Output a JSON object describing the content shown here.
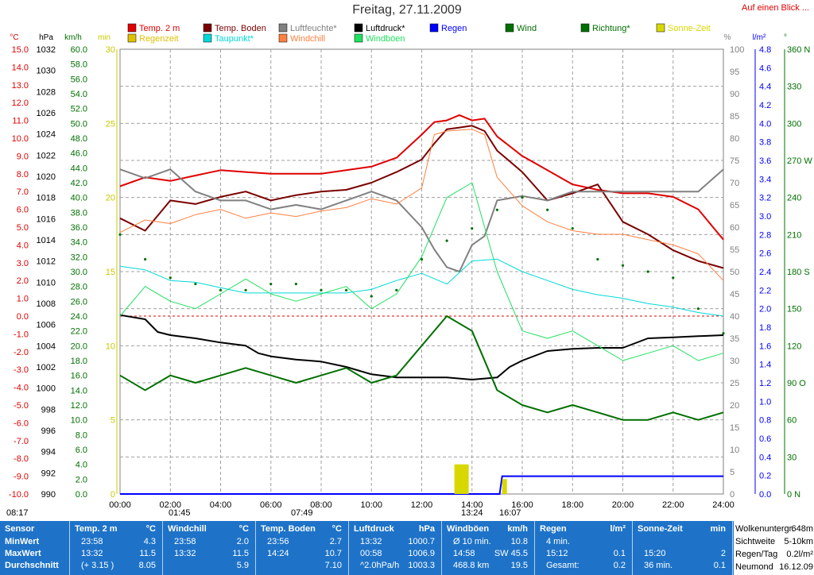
{
  "header": {
    "title": "Freitag, 27.11.2009",
    "link_label": "Auf einen Blick ..."
  },
  "legend": [
    {
      "label": "Temp. 2 m",
      "color": "#e00000"
    },
    {
      "label": "Temp. Boden",
      "color": "#7b0000"
    },
    {
      "label": "Luftfeuchte*",
      "color": "#808080"
    },
    {
      "label": "Luftdruck*",
      "color": "#000000"
    },
    {
      "label": "Regen",
      "color": "#0000ff"
    },
    {
      "label": "Wind",
      "color": "#007000"
    },
    {
      "label": "Richtung*",
      "color": "#007000"
    },
    {
      "label": "Sonne-Zeit",
      "color": "#d8d800"
    },
    {
      "label": "Regenzeit",
      "color": "#e0c000"
    },
    {
      "label": "Taupunkt*",
      "color": "#00d8d8"
    },
    {
      "label": "Windchill",
      "color": "#ff8040"
    },
    {
      "label": "Windböen",
      "color": "#20e060"
    }
  ],
  "axis_units": [
    "°C",
    "hPa",
    "km/h",
    "min",
    "%",
    "l/m²",
    "°"
  ],
  "markers": {
    "sunrise": "08:17",
    "moon1": "01:45",
    "moon2": "07:49",
    "sun_max": "13:24",
    "sunset": "16:07"
  },
  "stats": {
    "sensor_header": "Sensor",
    "row_labels": [
      "MinWert",
      "MaxWert",
      "Durchschnitt"
    ],
    "columns": [
      {
        "title": "Temp. 2 m",
        "unit": "°C",
        "rows": [
          [
            "23:58",
            "4.3"
          ],
          [
            "13:32",
            "11.5"
          ],
          [
            "(+ 3.15 )",
            "8.05"
          ]
        ]
      },
      {
        "title": "Windchill",
        "unit": "°C",
        "rows": [
          [
            "23:58",
            "2.0"
          ],
          [
            "13:32",
            "11.5"
          ],
          [
            "",
            "5.9"
          ]
        ]
      },
      {
        "title": "Temp. Boden",
        "unit": "°C",
        "rows": [
          [
            "23:56",
            "2.7"
          ],
          [
            "14:24",
            "10.7"
          ],
          [
            "",
            "7.10"
          ]
        ]
      },
      {
        "title": "Luftdruck",
        "unit": "hPa",
        "rows": [
          [
            "13:32",
            "1000.7"
          ],
          [
            "00:58",
            "1006.9"
          ],
          [
            "^2.0hPa/h",
            "1003.3"
          ]
        ]
      },
      {
        "title": "Windböen",
        "unit": "km/h",
        "rows": [
          [
            "Ø 10 min.",
            "10.8"
          ],
          [
            "14:58",
            "SW 45.5"
          ],
          [
            "468.8 km",
            "19.5"
          ]
        ]
      },
      {
        "title": "Regen",
        "unit": "l/m²",
        "rows": [
          [
            "4 min.",
            ""
          ],
          [
            "15:12",
            "0.1"
          ],
          [
            "Gesamt:",
            "0.2"
          ]
        ]
      },
      {
        "title": "Sonne-Zeit",
        "unit": "min",
        "rows": [
          [
            "",
            ""
          ],
          [
            "15:20",
            "2"
          ],
          [
            "36 min.",
            "0.1"
          ]
        ]
      }
    ],
    "side": [
      {
        "label": "Wolkenuntergr.",
        "value": "648m"
      },
      {
        "label": "Sichtweite",
        "value": "5-10km"
      },
      {
        "label": "Regen/Tag",
        "value": "0.2l/m²"
      },
      {
        "label": "Neumond",
        "value": "16.12.09"
      }
    ]
  },
  "chart_data": {
    "type": "line",
    "title": "Freitag, 27.11.2009",
    "x_ticks": [
      "00:00",
      "02:00",
      "04:00",
      "06:00",
      "08:00",
      "10:00",
      "12:00",
      "14:00",
      "16:00",
      "18:00",
      "20:00",
      "22:00",
      "24:00"
    ],
    "x_range_hours": [
      0,
      24
    ],
    "grid": true,
    "axes": {
      "temp_c": {
        "ticks": [
          "15.0",
          "14.0",
          "13.0",
          "12.0",
          "11.0",
          "10.0",
          "9.0",
          "8.0",
          "7.0",
          "6.0",
          "5.0",
          "4.0",
          "3.0",
          "2.0",
          "1.0",
          "0.0",
          "-1.0",
          "-2.0",
          "-3.0",
          "-4.0",
          "-5.0",
          "-6.0",
          "-7.0",
          "-8.0",
          "-9.0",
          "-10.0"
        ],
        "range": [
          -10,
          15
        ]
      },
      "pressure_hpa": {
        "ticks": [
          "1032",
          "1030",
          "1028",
          "1026",
          "1024",
          "1022",
          "1020",
          "1018",
          "1016",
          "1014",
          "1012",
          "1010",
          "1008",
          "1006",
          "1004",
          "1002",
          "1000",
          "998",
          "996",
          "994",
          "992",
          "990"
        ],
        "range": [
          990,
          1032
        ]
      },
      "wind_kmh": {
        "ticks": [
          "60.0",
          "58.0",
          "56.0",
          "54.0",
          "52.0",
          "50.0",
          "48.0",
          "46.0",
          "44.0",
          "42.0",
          "40.0",
          "38.0",
          "36.0",
          "34.0",
          "32.0",
          "30.0",
          "28.0",
          "26.0",
          "24.0",
          "22.0",
          "20.0",
          "18.0",
          "16.0",
          "14.0",
          "12.0",
          "10.0",
          "8.0",
          "6.0",
          "4.0",
          "2.0",
          "0.0"
        ],
        "range": [
          0,
          60
        ]
      },
      "min": {
        "ticks": [
          "30",
          "25",
          "20",
          "15",
          "10",
          "5",
          "0"
        ],
        "range": [
          0,
          30
        ]
      },
      "humidity_pct": {
        "ticks": [
          "100",
          "95",
          "90",
          "85",
          "80",
          "75",
          "70",
          "65",
          "60",
          "55",
          "50",
          "45",
          "40",
          "35",
          "30",
          "25",
          "20",
          "15",
          "10",
          "5",
          "0"
        ],
        "range": [
          0,
          100
        ]
      },
      "rain_lm2": {
        "ticks": [
          "4.8",
          "4.6",
          "4.4",
          "4.2",
          "4.0",
          "3.8",
          "3.6",
          "3.4",
          "3.2",
          "3.0",
          "2.8",
          "2.6",
          "2.4",
          "2.2",
          "2.0",
          "1.8",
          "1.6",
          "1.4",
          "1.2",
          "1.0",
          "0.8",
          "0.6",
          "0.4",
          "0.2",
          "0.0"
        ],
        "range": [
          0,
          5
        ]
      },
      "direction_deg": {
        "ticks": [
          "360 N",
          "330",
          "300",
          "270 W",
          "240",
          "210",
          "180 S",
          "150",
          "120",
          "90 O",
          "60",
          "30",
          "0 N"
        ],
        "range": [
          0,
          360
        ]
      }
    },
    "series": [
      {
        "name": "Temp. 2 m",
        "axis": "temp_c",
        "color": "#e00000",
        "x": [
          0,
          1,
          2,
          3,
          4,
          5,
          6,
          7,
          8,
          9,
          10,
          11,
          12,
          12.5,
          13,
          13.5,
          14,
          14.5,
          15,
          16,
          17,
          18,
          19,
          20,
          21,
          22,
          23,
          24
        ],
        "y": [
          7.3,
          7.8,
          7.6,
          7.9,
          8.2,
          8.1,
          8.0,
          8.0,
          8.0,
          8.2,
          8.4,
          8.9,
          10.2,
          10.9,
          11.0,
          11.3,
          11.0,
          11.1,
          10.1,
          9.0,
          8.2,
          7.4,
          7.1,
          6.9,
          6.9,
          6.7,
          6.0,
          4.3
        ]
      },
      {
        "name": "Temp. Boden",
        "axis": "temp_c",
        "color": "#7b0000",
        "x": [
          0,
          1,
          2,
          3,
          4,
          5,
          6,
          7,
          8,
          9,
          10,
          11,
          12,
          12.5,
          13,
          13.5,
          14,
          14.5,
          15,
          16,
          17,
          18,
          19,
          20,
          21,
          22,
          23,
          24
        ],
        "y": [
          5.5,
          4.8,
          6.5,
          6.3,
          6.7,
          7.0,
          6.5,
          6.8,
          7.0,
          7.1,
          7.5,
          8.1,
          8.8,
          9.7,
          10.5,
          10.6,
          10.7,
          10.4,
          9.3,
          8.1,
          6.5,
          6.9,
          7.4,
          5.3,
          4.6,
          3.7,
          3.1,
          2.7
        ]
      },
      {
        "name": "Luftfeuchte*",
        "axis": "humidity_pct",
        "color": "#808080",
        "x": [
          0,
          1,
          2,
          3,
          4,
          5,
          6,
          7,
          8,
          9,
          10,
          11,
          12,
          12.5,
          13,
          13.5,
          14,
          14.5,
          15,
          16,
          17,
          18,
          19,
          20,
          21,
          22,
          23,
          24
        ],
        "y": [
          73,
          71,
          73,
          68,
          66,
          66,
          64,
          65,
          64,
          66,
          68,
          66,
          60,
          55,
          51,
          50,
          56,
          58,
          66,
          67,
          66,
          68,
          68,
          68,
          68,
          68,
          68,
          73
        ]
      },
      {
        "name": "Luftdruck*",
        "axis": "pressure_hpa",
        "color": "#000000",
        "x": [
          0,
          1,
          1.5,
          2,
          3,
          4,
          5,
          5.5,
          6,
          7,
          8,
          9,
          10,
          11,
          12,
          13,
          14,
          15,
          15.5,
          16,
          17,
          18,
          19,
          20,
          21,
          22,
          23,
          24
        ],
        "y": [
          1006.9,
          1006.5,
          1005.3,
          1005.0,
          1004.7,
          1004.3,
          1004.0,
          1003.3,
          1003.0,
          1002.7,
          1002.5,
          1002.0,
          1001.3,
          1001.0,
          1001.0,
          1001.0,
          1000.8,
          1001.0,
          1002.0,
          1002.6,
          1003.5,
          1003.7,
          1003.8,
          1003.8,
          1004.7,
          1004.8,
          1004.9,
          1005.0
        ]
      },
      {
        "name": "Taupunkt*",
        "axis": "temp_c",
        "color": "#00d8d8",
        "x": [
          0,
          1,
          2,
          3,
          4,
          5,
          6,
          7,
          8,
          9,
          10,
          11,
          12,
          13,
          14,
          15,
          16,
          17,
          18,
          19,
          20,
          21,
          22,
          23,
          24
        ],
        "y": [
          2.8,
          2.6,
          2.0,
          1.9,
          1.6,
          1.3,
          1.3,
          1.3,
          1.3,
          1.3,
          1.5,
          2.0,
          2.4,
          1.8,
          3.1,
          3.2,
          2.5,
          2.0,
          1.5,
          1.2,
          1.0,
          0.7,
          0.5,
          0.2,
          0.0
        ]
      },
      {
        "name": "Windchill",
        "axis": "temp_c",
        "color": "#ff8040",
        "x": [
          0,
          1,
          2,
          3,
          4,
          5,
          6,
          7,
          8,
          9,
          10,
          11,
          12,
          12.5,
          13,
          14,
          14.5,
          15,
          16,
          17,
          18,
          19,
          20,
          21,
          22,
          23,
          24
        ],
        "y": [
          4.7,
          5.4,
          5.2,
          5.7,
          6.0,
          5.5,
          5.8,
          5.6,
          5.9,
          6.1,
          6.6,
          6.3,
          7.2,
          10.2,
          10.4,
          10.5,
          10.2,
          7.8,
          6.2,
          5.3,
          4.8,
          4.6,
          4.6,
          4.3,
          4.0,
          3.5,
          2.0
        ]
      },
      {
        "name": "Wind",
        "axis": "wind_kmh",
        "color": "#007000",
        "x": [
          0,
          1,
          2,
          3,
          4,
          5,
          6,
          7,
          8,
          9,
          10,
          11,
          12,
          13,
          14,
          15,
          16,
          17,
          18,
          19,
          20,
          21,
          22,
          23,
          24
        ],
        "y": [
          16,
          14,
          16,
          15,
          16,
          17,
          16,
          15,
          16,
          17,
          15,
          16,
          20,
          24,
          22,
          14,
          12,
          11,
          12,
          11,
          10,
          10,
          11,
          10,
          11
        ]
      },
      {
        "name": "Windböen",
        "axis": "wind_kmh",
        "color": "#20e060",
        "x": [
          0,
          1,
          2,
          3,
          4,
          5,
          6,
          7,
          8,
          9,
          10,
          11,
          12,
          13,
          14,
          15,
          16,
          17,
          18,
          19,
          20,
          21,
          22,
          23,
          24
        ],
        "y": [
          24,
          28,
          26,
          25,
          27,
          29,
          27,
          26,
          27,
          28,
          25,
          27,
          32,
          40,
          42,
          30,
          22,
          21,
          22,
          20,
          18,
          19,
          20,
          18,
          19
        ]
      },
      {
        "name": "Richtung*",
        "axis": "direction_deg",
        "color": "#007000",
        "x": [
          0,
          1,
          2,
          3,
          4,
          5,
          6,
          7,
          8,
          9,
          10,
          11,
          12,
          13,
          14,
          15,
          16,
          17,
          18,
          19,
          20,
          21,
          22,
          23,
          24
        ],
        "y": [
          210,
          190,
          175,
          170,
          165,
          165,
          170,
          170,
          165,
          165,
          160,
          165,
          190,
          205,
          215,
          230,
          240,
          230,
          215,
          190,
          185,
          180,
          175,
          150,
          130
        ]
      },
      {
        "name": "Regen",
        "axis": "rain_lm2",
        "color": "#0000ff",
        "x": [
          0,
          9.6,
          15.1,
          15.2,
          24
        ],
        "y": [
          0,
          0,
          0,
          0.2,
          0.2
        ]
      },
      {
        "name": "Sonne-Zeit",
        "axis": "min",
        "color": "#d8d800",
        "x": [
          13.3,
          15.2
        ],
        "y": [
          2,
          1
        ]
      }
    ]
  }
}
